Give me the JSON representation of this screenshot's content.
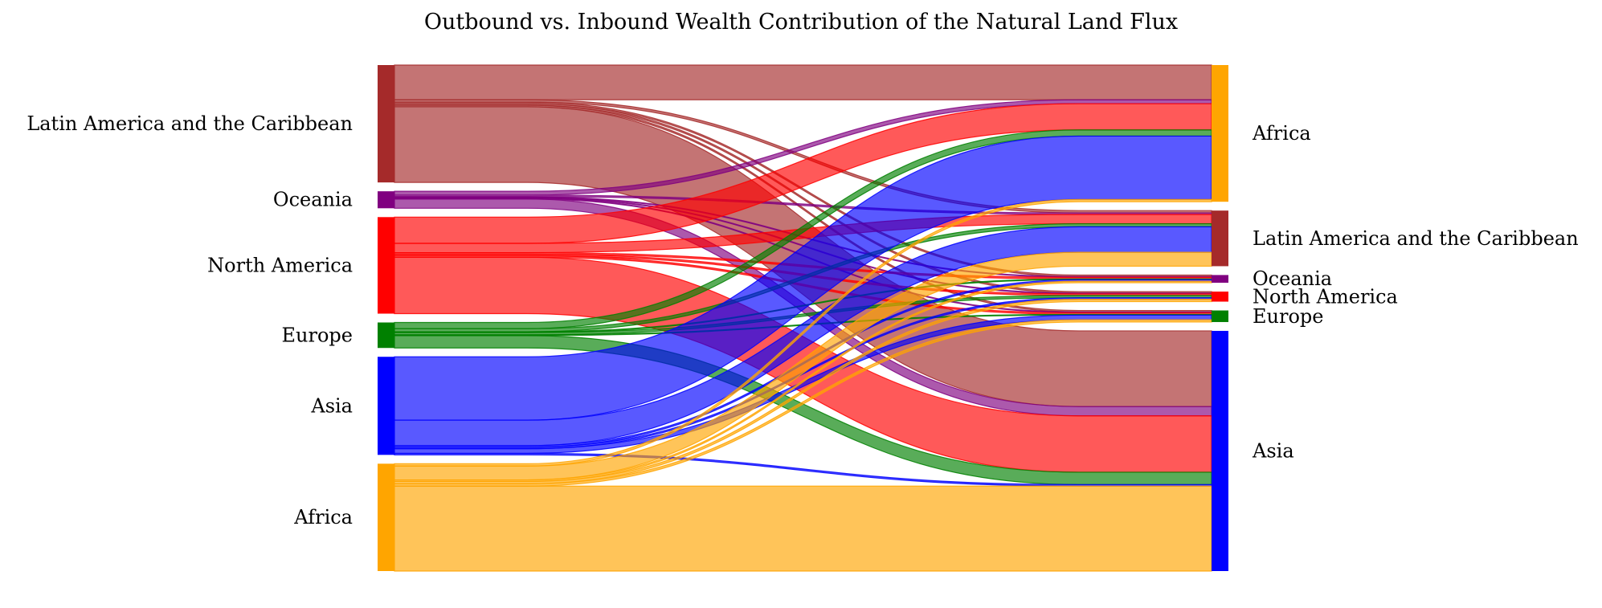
{
  "chart_data": {
    "type": "sankey",
    "title": "Outbound vs. Inbound Wealth Contribution of the Natural Land Flux",
    "sources": [
      {
        "name": "Latin America and the Caribbean",
        "color": "#a52a2a"
      },
      {
        "name": "Oceania",
        "color": "#800080"
      },
      {
        "name": "North America",
        "color": "#ff0000"
      },
      {
        "name": "Europe",
        "color": "#008000"
      },
      {
        "name": "Asia",
        "color": "#0000ff"
      },
      {
        "name": "Africa",
        "color": "#ffa500"
      }
    ],
    "targets": [
      {
        "name": "Africa",
        "color": "#ffa500"
      },
      {
        "name": "Latin America and the Caribbean",
        "color": "#a52a2a"
      },
      {
        "name": "Oceania",
        "color": "#800080"
      },
      {
        "name": "North America",
        "color": "#ff0000"
      },
      {
        "name": "Europe",
        "color": "#008000"
      },
      {
        "name": "Asia",
        "color": "#0000ff"
      }
    ],
    "flows": [
      {
        "source": "Latin America and the Caribbean",
        "target": "Africa",
        "value": 45
      },
      {
        "source": "Latin America and the Caribbean",
        "target": "Latin America and the Caribbean",
        "value": 3
      },
      {
        "source": "Latin America and the Caribbean",
        "target": "Oceania",
        "value": 2
      },
      {
        "source": "Latin America and the Caribbean",
        "target": "North America",
        "value": 2
      },
      {
        "source": "Latin America and the Caribbean",
        "target": "Europe",
        "value": 2
      },
      {
        "source": "Latin America and the Caribbean",
        "target": "Asia",
        "value": 98
      },
      {
        "source": "Oceania",
        "target": "Africa",
        "value": 5
      },
      {
        "source": "Oceania",
        "target": "Latin America and the Caribbean",
        "value": 2
      },
      {
        "source": "Oceania",
        "target": "Oceania",
        "value": 1
      },
      {
        "source": "Oceania",
        "target": "North America",
        "value": 1
      },
      {
        "source": "Oceania",
        "target": "Europe",
        "value": 1
      },
      {
        "source": "Oceania",
        "target": "Asia",
        "value": 12
      },
      {
        "source": "North America",
        "target": "Africa",
        "value": 34
      },
      {
        "source": "North America",
        "target": "Latin America and the Caribbean",
        "value": 12
      },
      {
        "source": "North America",
        "target": "Oceania",
        "value": 2
      },
      {
        "source": "North America",
        "target": "North America",
        "value": 2
      },
      {
        "source": "North America",
        "target": "Europe",
        "value": 2
      },
      {
        "source": "North America",
        "target": "Asia",
        "value": 73
      },
      {
        "source": "Europe",
        "target": "Africa",
        "value": 8
      },
      {
        "source": "Europe",
        "target": "Latin America and the Caribbean",
        "value": 4
      },
      {
        "source": "Europe",
        "target": "Oceania",
        "value": 1
      },
      {
        "source": "Europe",
        "target": "North America",
        "value": 3
      },
      {
        "source": "Europe",
        "target": "Europe",
        "value": 1
      },
      {
        "source": "Europe",
        "target": "Asia",
        "value": 16
      },
      {
        "source": "Asia",
        "target": "Africa",
        "value": 82
      },
      {
        "source": "Asia",
        "target": "Latin America and the Caribbean",
        "value": 33
      },
      {
        "source": "Asia",
        "target": "Oceania",
        "value": 2
      },
      {
        "source": "Asia",
        "target": "North America",
        "value": 2
      },
      {
        "source": "Asia",
        "target": "Europe",
        "value": 6
      },
      {
        "source": "Asia",
        "target": "Asia",
        "value": 2
      },
      {
        "source": "Africa",
        "target": "Africa",
        "value": 3
      },
      {
        "source": "Africa",
        "target": "Latin America and the Caribbean",
        "value": 18
      },
      {
        "source": "Africa",
        "target": "Oceania",
        "value": 2
      },
      {
        "source": "Africa",
        "target": "North America",
        "value": 3
      },
      {
        "source": "Africa",
        "target": "Europe",
        "value": 3
      },
      {
        "source": "Africa",
        "target": "Asia",
        "value": 110
      }
    ]
  }
}
